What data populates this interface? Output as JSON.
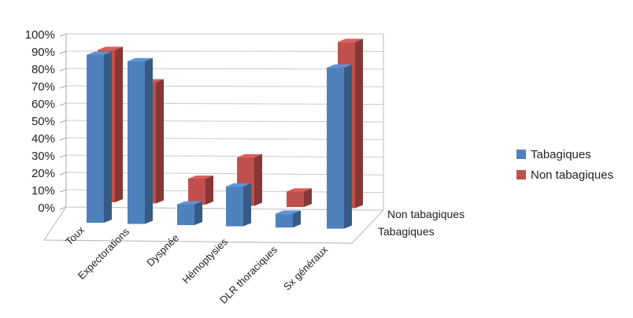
{
  "chart_data": {
    "type": "bar",
    "subtype": "3d-clustered-column",
    "categories": [
      "Toux",
      "Expectorations",
      "Dyspnée",
      "Hémoptysies",
      "DLR thoraciques",
      "Sx généraux"
    ],
    "series": [
      {
        "name": "Tabagiques",
        "values": [
          97,
          94,
          12,
          23,
          8,
          93
        ],
        "color": "#4f81bd"
      },
      {
        "name": "Non tabagiques",
        "values": [
          88,
          70,
          15,
          28,
          9,
          96
        ],
        "color": "#c0504d"
      }
    ],
    "yticks": [
      "0%",
      "10%",
      "20%",
      "30%",
      "40%",
      "50%",
      "60%",
      "70%",
      "80%",
      "90%",
      "100%"
    ],
    "ylim": [
      0,
      100
    ],
    "depth_labels": [
      "Non tabagiques",
      "Tabagiques"
    ],
    "legend_position": "right",
    "grid": true
  }
}
